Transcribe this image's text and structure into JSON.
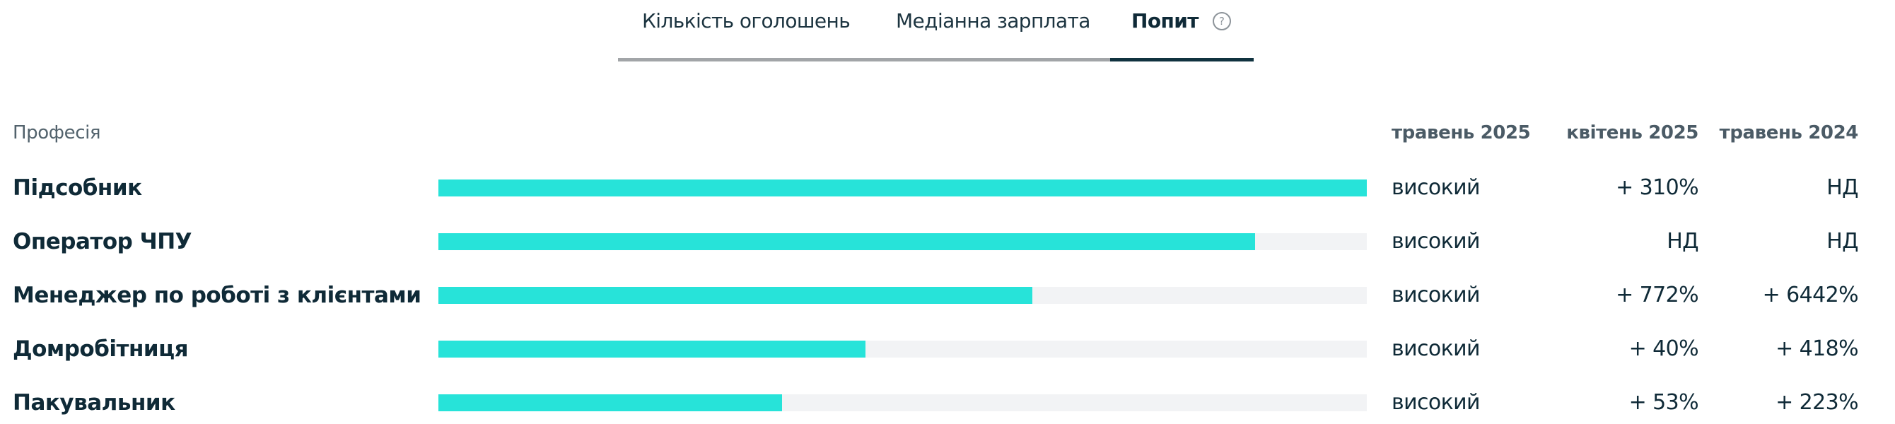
{
  "tabs": [
    {
      "label": "Кількість оголошень",
      "active": false
    },
    {
      "label": "Медіанна зарплата",
      "active": false
    },
    {
      "label": "Попит",
      "active": true,
      "icon": "help-circle-icon",
      "icon_glyph": "?"
    }
  ],
  "colors": {
    "bar_fill": "#27e3d9",
    "bar_track": "#f2f3f5",
    "text_primary": "#0f2a37",
    "text_header": "#4b5b66",
    "tab_indicator": "#10323f",
    "tab_track": "#a2a5a8"
  },
  "table": {
    "headers": {
      "profession": "Професія",
      "col_current": "травень 2025",
      "col_prev_month": "квітень 2025",
      "col_prev_year": "травень 2024"
    },
    "rows": [
      {
        "profession": "Підсобник",
        "bar_percent": 100,
        "current": "високий",
        "prev_month": "+ 310%",
        "prev_year": "НД"
      },
      {
        "profession": "Оператор ЧПУ",
        "bar_percent": 88,
        "current": "високий",
        "prev_month": "НД",
        "prev_year": "НД"
      },
      {
        "profession": "Менеджер по роботі з клієнтами",
        "bar_percent": 64,
        "current": "високий",
        "prev_month": "+ 772%",
        "prev_year": "+ 6442%"
      },
      {
        "profession": "Домробітниця",
        "bar_percent": 46,
        "current": "високий",
        "prev_month": "+ 40%",
        "prev_year": "+ 418%"
      },
      {
        "profession": "Пакувальник",
        "bar_percent": 37,
        "current": "високий",
        "prev_month": "+ 53%",
        "prev_year": "+ 223%"
      }
    ]
  }
}
